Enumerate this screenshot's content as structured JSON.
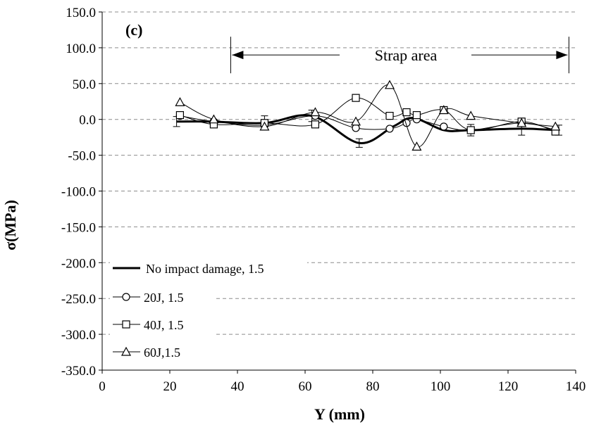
{
  "chart_data": {
    "type": "line",
    "panel_label": "(c)",
    "xlabel": "Y (mm)",
    "ylabel": "σ(MPa)",
    "xlim": [
      0,
      140
    ],
    "ylim": [
      -350,
      150
    ],
    "x_ticks": [
      0,
      20,
      40,
      60,
      80,
      100,
      120,
      140
    ],
    "y_ticks": [
      150,
      100,
      50,
      0,
      -50,
      -100,
      -150,
      -200,
      -250,
      -300,
      -350
    ],
    "x_tick_labels": [
      "0",
      "20",
      "40",
      "60",
      "80",
      "100",
      "120",
      "140"
    ],
    "y_tick_labels": [
      "150.0",
      "100.0",
      "50.0",
      "0.0",
      "-50.0",
      "-100.0",
      "-150.0",
      "-200.0",
      "-250.0",
      "-300.0",
      "-350.0"
    ],
    "grid": "horizontal-dashed",
    "legend_position": "bottom-left",
    "annotation": {
      "text": "Strap area",
      "x_start": 38,
      "x_end": 138,
      "y": 85
    },
    "series": [
      {
        "name": "No impact damage, 1.5",
        "marker": "none",
        "stroke_width": 3,
        "x": [
          22,
          32,
          48,
          62,
          76,
          86,
          92,
          101,
          109,
          124,
          135
        ],
        "y": [
          -3,
          -3,
          -5,
          5,
          -33,
          -10,
          2,
          -15,
          -15,
          -13,
          -15
        ],
        "error": [
          7,
          0,
          10,
          8,
          6,
          0,
          0,
          0,
          8,
          9,
          7
        ]
      },
      {
        "name": "20J, 1.5",
        "marker": "circle",
        "stroke_width": 1,
        "x": [
          23,
          33,
          48,
          63,
          75,
          85,
          90,
          93,
          101,
          109,
          124,
          134
        ],
        "y": [
          5,
          -3,
          -8,
          5,
          -12,
          -13,
          -5,
          0,
          -10,
          -15,
          -5,
          -15
        ],
        "error": []
      },
      {
        "name": "40J, 1.5",
        "marker": "square",
        "stroke_width": 1,
        "x": [
          23,
          33,
          48,
          63,
          75,
          85,
          90,
          93,
          101,
          109,
          124,
          134
        ],
        "y": [
          6,
          -7,
          -5,
          -7,
          30,
          5,
          10,
          6,
          13,
          -15,
          -3,
          -17
        ],
        "error": []
      },
      {
        "name": "60J,1.5",
        "marker": "triangle",
        "stroke_width": 1,
        "x": [
          23,
          33,
          48,
          63,
          75,
          85,
          93,
          101,
          109,
          124,
          134
        ],
        "y": [
          24,
          0,
          -10,
          10,
          -3,
          48,
          -38,
          13,
          5,
          -5,
          -10
        ],
        "error": []
      }
    ]
  }
}
